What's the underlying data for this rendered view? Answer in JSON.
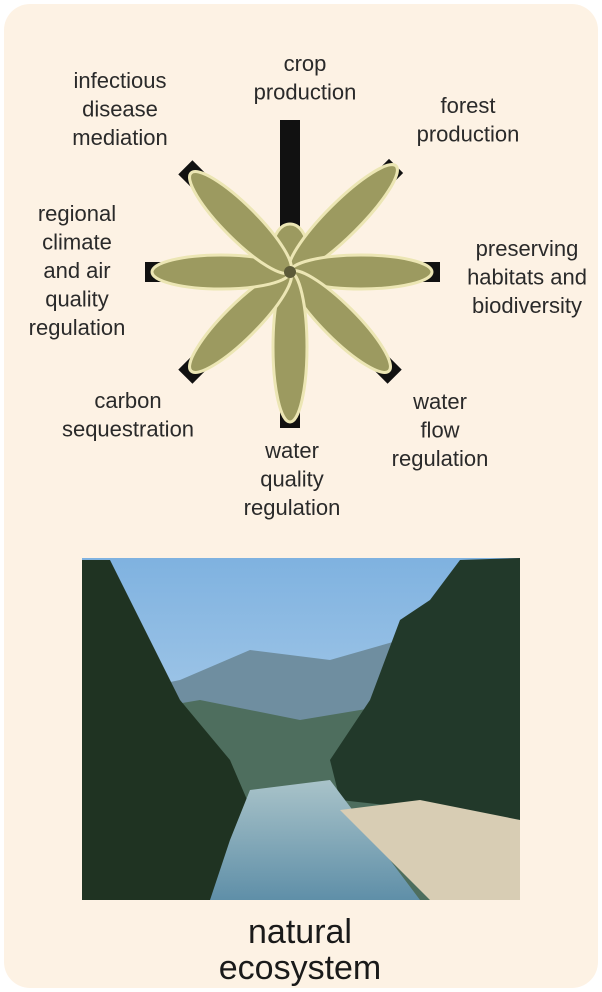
{
  "labels": [
    {
      "lines": [
        "crop",
        "production"
      ]
    },
    {
      "lines": [
        "forest",
        "production"
      ]
    },
    {
      "lines": [
        "preserving",
        "habitats and",
        "biodiversity"
      ]
    },
    {
      "lines": [
        "water",
        "flow",
        "regulation"
      ]
    },
    {
      "lines": [
        "water",
        "quality",
        "regulation"
      ]
    },
    {
      "lines": [
        "carbon",
        "sequestration"
      ]
    },
    {
      "lines": [
        "regional",
        "climate",
        "and air",
        "quality",
        "regulation"
      ]
    },
    {
      "lines": [
        "infectious",
        "disease",
        "mediation"
      ]
    }
  ],
  "caption": [
    "natural",
    "ecosystem"
  ]
}
